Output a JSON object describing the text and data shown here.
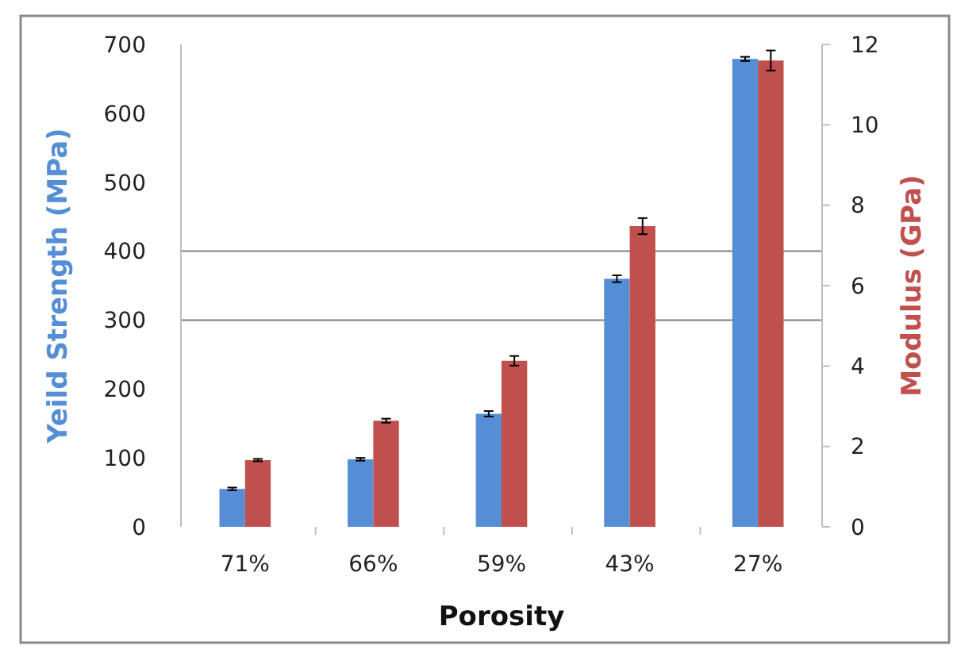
{
  "chart_data": {
    "type": "bar",
    "xlabel": "Porosity",
    "ylabel": "Yeild Strength (MPa)",
    "y2label": "Modulus (GPa)",
    "categories": [
      "71%",
      "66%",
      "59%",
      "43%",
      "27%"
    ],
    "series": [
      {
        "color": "#558ed5",
        "values": [
          55,
          98,
          164,
          360,
          679
        ],
        "errors": [
          2,
          2,
          4,
          5,
          3
        ]
      },
      {
        "color": "#c0504d",
        "axis": "y2",
        "values": [
          1.66,
          2.64,
          4.13,
          7.48,
          11.6
        ],
        "errors": [
          0.03,
          0.05,
          0.12,
          0.2,
          0.25
        ]
      }
    ],
    "ylim": [
      0,
      700
    ],
    "yticks": [
      0,
      100,
      200,
      300,
      400,
      500,
      600,
      700
    ],
    "y2lim": [
      0,
      12
    ],
    "y2ticks": [
      0,
      2,
      4,
      6,
      8,
      10,
      12
    ],
    "ref_lines": [
      {
        "axis": "y",
        "value": 300,
        "color": "#7f7f7f"
      },
      {
        "axis": "y",
        "value": 400,
        "color": "#7f7f7f"
      }
    ]
  }
}
